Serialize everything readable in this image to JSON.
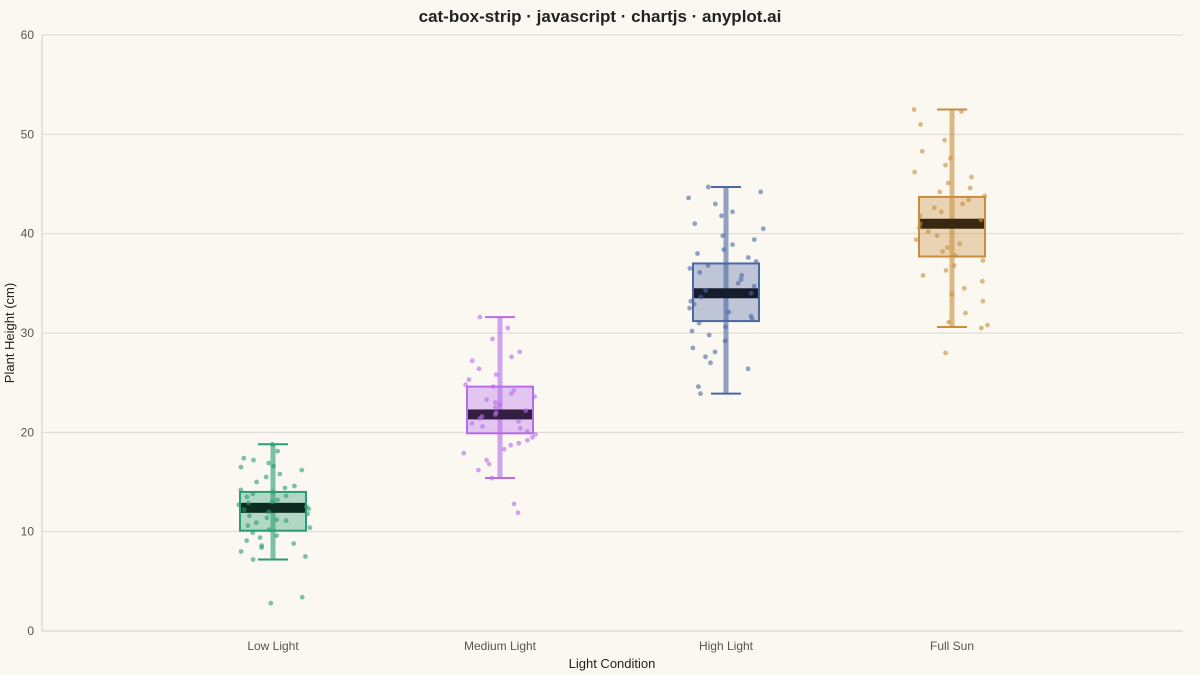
{
  "chart_data": {
    "type": "box-strip",
    "title": "cat-box-strip · javascript · chartjs · anyplot.ai",
    "xlabel": "Light Condition",
    "ylabel": "Plant Height (cm)",
    "ylim": [
      0,
      60
    ],
    "yticks": [
      0,
      10,
      20,
      30,
      40,
      50,
      60
    ],
    "grid": true,
    "categories": [
      "Low Light",
      "Medium Light",
      "High Light",
      "Full Sun"
    ],
    "colors": [
      "#2A9D72",
      "#B86BEB",
      "#4A68A2",
      "#C88E3E"
    ],
    "box_stats": [
      {
        "category": "Low Light",
        "whisker_low": 7.2,
        "q1": 10.1,
        "median": 12.4,
        "q3": 14.0,
        "whisker_high": 18.8
      },
      {
        "category": "Medium Light",
        "whisker_low": 15.4,
        "q1": 19.9,
        "median": 21.8,
        "q3": 24.6,
        "whisker_high": 31.6
      },
      {
        "category": "High Light",
        "whisker_low": 23.9,
        "q1": 31.2,
        "median": 34.0,
        "q3": 37.0,
        "whisker_high": 44.7
      },
      {
        "category": "Full Sun",
        "whisker_low": 30.6,
        "q1": 37.7,
        "median": 41.0,
        "q3": 43.7,
        "whisker_high": 52.5
      }
    ],
    "points": [
      {
        "category": "Low Light",
        "values": [
          18.8,
          18.1,
          17.4,
          17.2,
          16.9,
          16.6,
          16.5,
          16.2,
          15.8,
          15.5,
          15.0,
          14.6,
          14.4,
          14.2,
          14.0,
          13.8,
          13.6,
          13.5,
          13.2,
          13.0,
          12.9,
          12.7,
          12.5,
          12.3,
          12.2,
          12.0,
          11.8,
          11.6,
          11.4,
          11.2,
          11.1,
          10.9,
          10.6,
          10.4,
          10.2,
          9.9,
          9.6,
          9.4,
          9.1,
          8.8,
          8.6,
          8.4,
          8.0,
          7.5,
          7.2,
          3.4,
          2.8
        ]
      },
      {
        "category": "Medium Light",
        "values": [
          31.6,
          30.5,
          29.4,
          28.1,
          27.6,
          27.2,
          26.4,
          25.8,
          25.3,
          24.8,
          24.6,
          24.2,
          23.9,
          23.6,
          23.3,
          23.0,
          22.8,
          22.5,
          22.2,
          22.0,
          21.8,
          21.6,
          21.4,
          21.1,
          20.9,
          20.6,
          20.4,
          20.1,
          19.8,
          19.5,
          19.2,
          18.9,
          18.7,
          18.3,
          17.9,
          17.2,
          16.8,
          16.2,
          15.4,
          12.8,
          11.9
        ]
      },
      {
        "category": "High Light",
        "values": [
          44.7,
          44.2,
          43.6,
          43.0,
          42.2,
          41.8,
          41.0,
          40.5,
          39.8,
          39.4,
          38.9,
          38.4,
          38.0,
          37.6,
          37.2,
          36.8,
          36.5,
          36.1,
          35.8,
          35.4,
          35.0,
          34.7,
          34.3,
          34.0,
          33.6,
          33.2,
          32.9,
          32.5,
          32.1,
          31.7,
          31.4,
          31.0,
          30.6,
          30.2,
          29.8,
          29.2,
          28.5,
          28.1,
          27.6,
          27.0,
          26.4,
          24.6,
          23.9
        ]
      },
      {
        "category": "Full Sun",
        "values": [
          52.5,
          52.3,
          51.0,
          49.4,
          48.3,
          47.6,
          46.9,
          46.2,
          45.7,
          45.1,
          44.6,
          44.2,
          43.8,
          43.4,
          43.0,
          42.6,
          42.2,
          41.8,
          41.4,
          41.0,
          40.6,
          40.2,
          39.8,
          39.4,
          39.0,
          38.6,
          38.2,
          37.8,
          37.3,
          36.8,
          36.3,
          35.8,
          35.2,
          34.5,
          33.9,
          33.2,
          32.0,
          31.1,
          30.8,
          30.5,
          28.0
        ]
      }
    ]
  }
}
